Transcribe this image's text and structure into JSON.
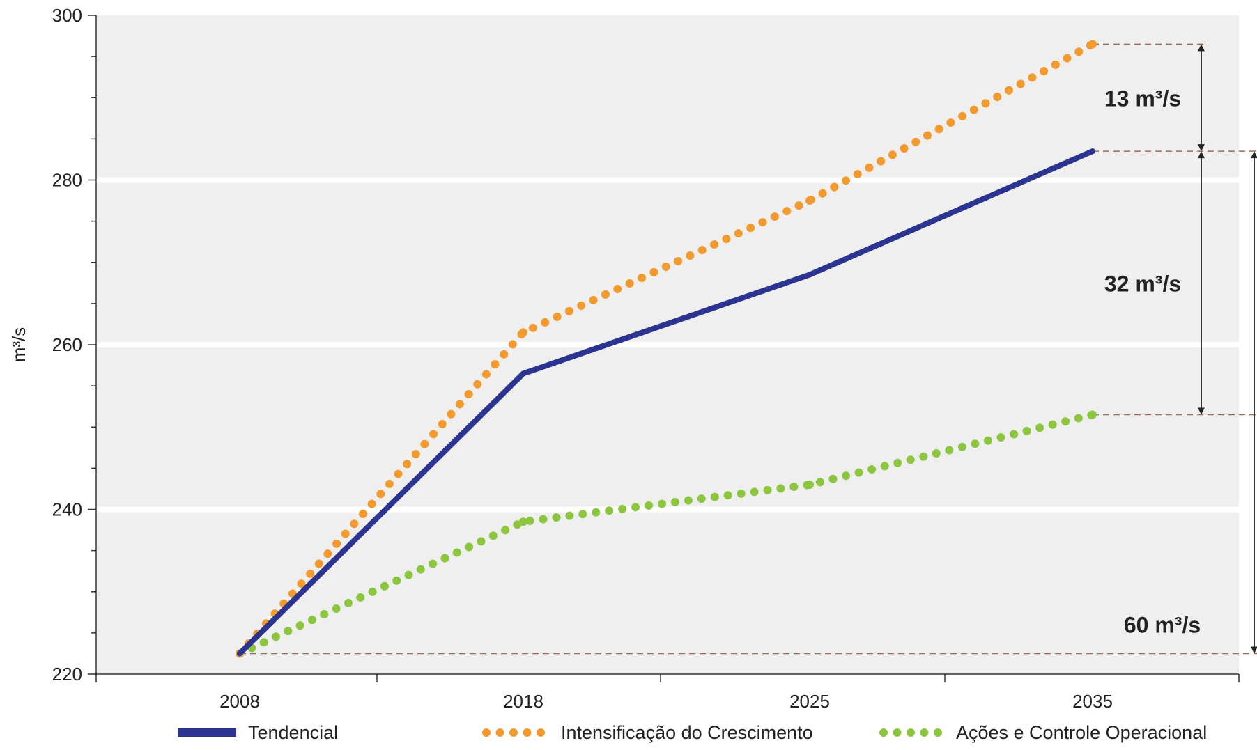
{
  "chart_data": {
    "type": "line",
    "x": [
      "2008",
      "2018",
      "2025",
      "2035"
    ],
    "ylabel": "m³/s",
    "ylim": [
      220,
      300
    ],
    "yticks": [
      "220",
      "240",
      "260",
      "280",
      "300"
    ],
    "grid": "horizontal",
    "legend_position": "bottom",
    "series": [
      {
        "name": "Tendencial",
        "values": [
          222.5,
          256.5,
          268.5,
          283.5
        ],
        "color": "#2b3591",
        "style": "solid"
      },
      {
        "name": "Intensificação do Crescimento",
        "values": [
          222.5,
          261.5,
          277.5,
          296.5
        ],
        "color": "#f39a2e",
        "style": "dotted"
      },
      {
        "name": "Ações e Controle Operacional",
        "values": [
          222.5,
          238.5,
          243.0,
          251.5
        ],
        "color": "#8cc63f",
        "style": "dotted"
      }
    ],
    "annotations": [
      {
        "text": "13 m³/s",
        "from": 283.5,
        "to": 296.5
      },
      {
        "text": "32 m³/s",
        "from": 251.5,
        "to": 283.5
      },
      {
        "text": "60 m³/s",
        "from": 222.5,
        "to": 283.5
      }
    ]
  }
}
